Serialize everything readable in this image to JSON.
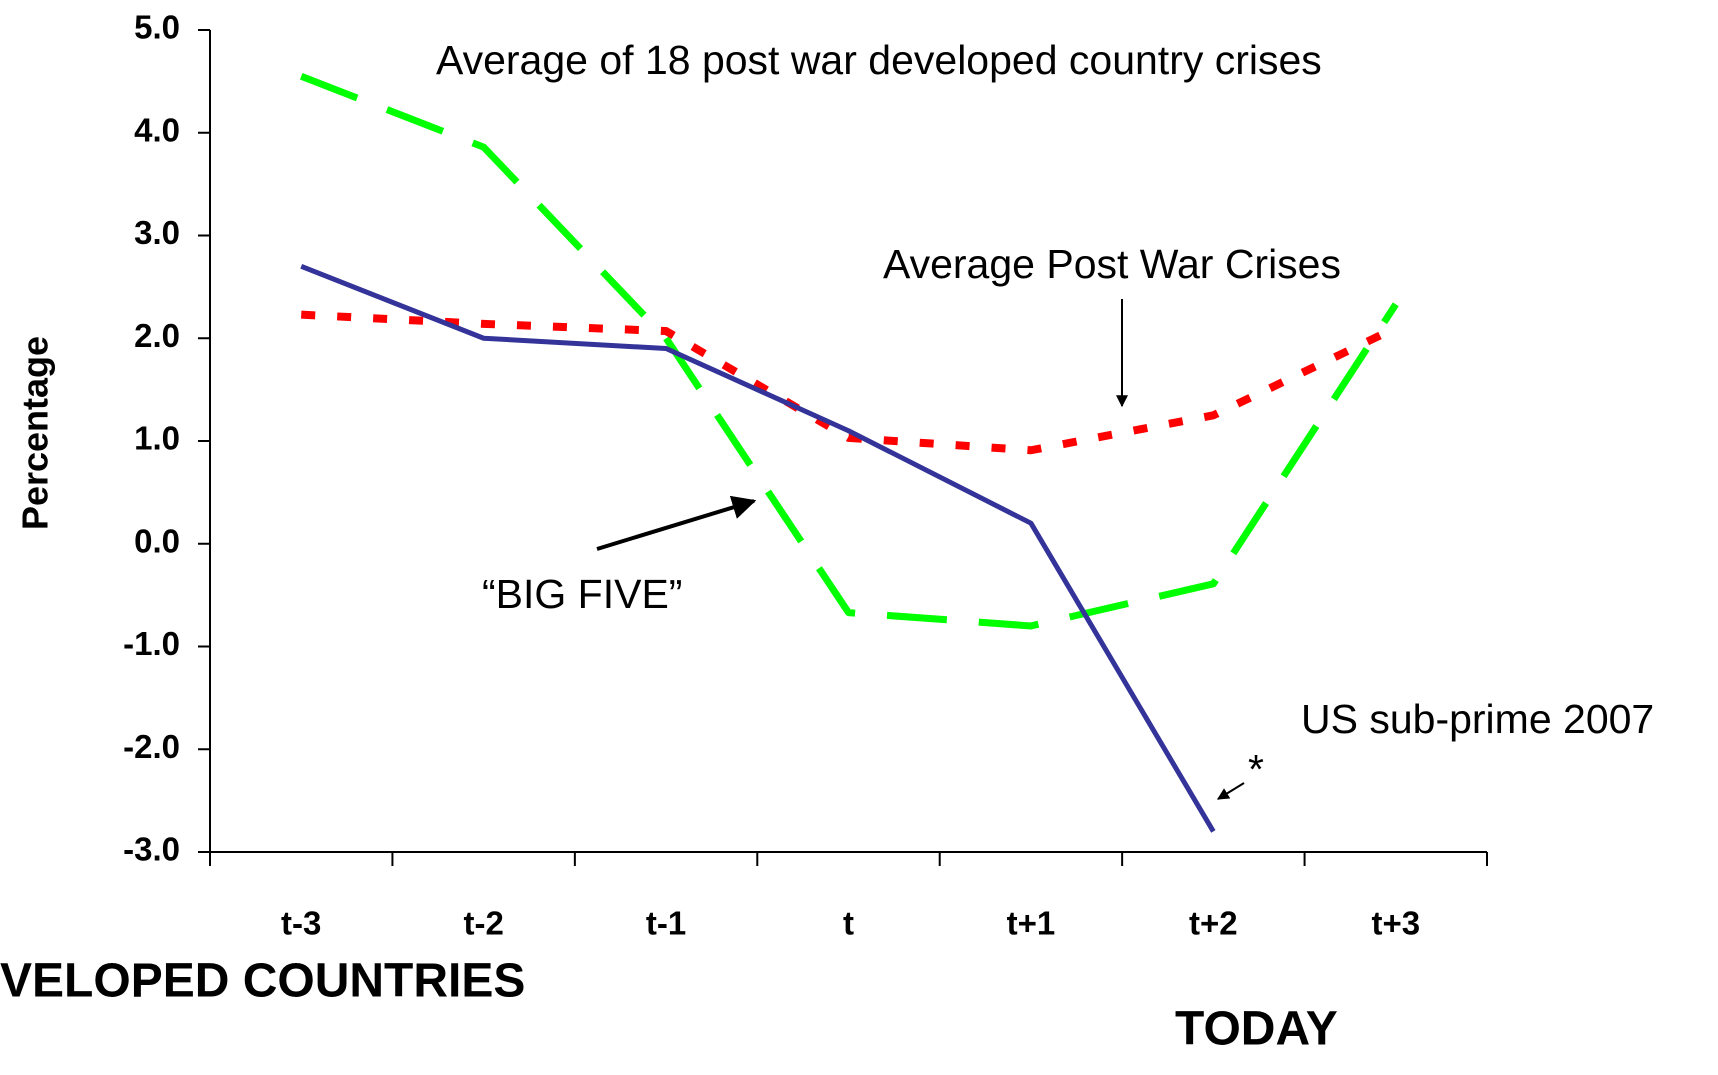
{
  "chart_data": {
    "type": "line",
    "y_label": "Percentage",
    "categories": [
      "t-3",
      "t-2",
      "t-1",
      "t",
      "t+1",
      "t+2",
      "t+3"
    ],
    "series": [
      {
        "color": "#00ff00",
        "style": "dashed",
        "values": [
          4.55,
          3.86,
          2.0,
          -0.67,
          -0.8,
          -0.39,
          2.33
        ]
      },
      {
        "color": "#ff0000",
        "style": "dotted",
        "values": [
          2.23,
          2.14,
          2.07,
          1.03,
          0.91,
          1.25,
          2.1
        ]
      },
      {
        "color": "#333399",
        "style": "solid",
        "values": [
          2.7,
          2.0,
          1.9,
          1.1,
          0.2,
          -2.8,
          null
        ]
      }
    ],
    "ylim": [
      -3,
      5
    ],
    "yticks": [
      {
        "value": 5,
        "label": "5.0"
      },
      {
        "value": 4,
        "label": "4.0"
      },
      {
        "value": 3,
        "label": "3.0"
      },
      {
        "value": 2,
        "label": "2.0"
      },
      {
        "value": 1,
        "label": "1.0"
      },
      {
        "value": 0,
        "label": "0.0"
      },
      {
        "value": -1,
        "label": "-1.0"
      },
      {
        "value": -2,
        "label": "-2.0"
      },
      {
        "value": -3,
        "label": "-3.0"
      }
    ],
    "annotations": [
      "Average of 18 post war developed country crises",
      "Average Post War Crises",
      "“BIG FIVE”",
      "US sub-prime 2007",
      "*",
      "VELOPED COUNTRIES",
      "TODAY"
    ]
  }
}
